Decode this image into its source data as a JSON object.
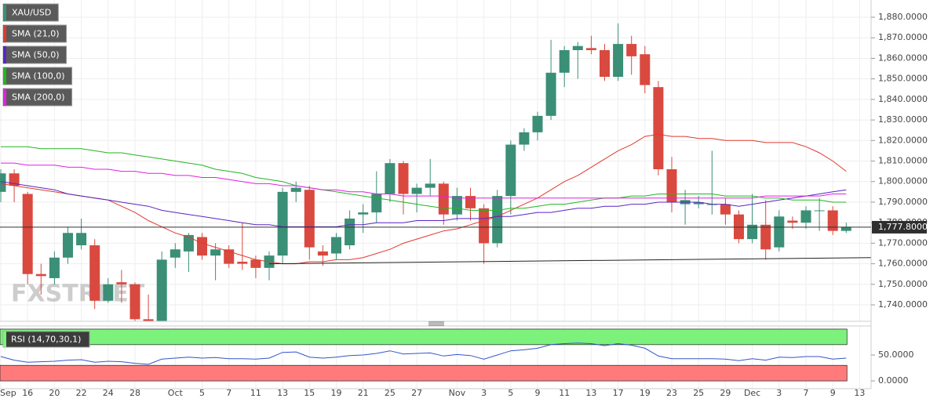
{
  "chart_data": [
    {
      "type": "candlestick",
      "watermark": "FXSTREET",
      "categories": [
        "Sep",
        null,
        "16",
        null,
        "20",
        null,
        "22",
        null,
        "24",
        null,
        "28",
        null,
        null,
        "Oct",
        null,
        "5",
        null,
        "7",
        null,
        "11",
        null,
        "13",
        null,
        "15",
        null,
        "19",
        null,
        "21",
        null,
        "25",
        null,
        "27",
        null,
        null,
        "Nov",
        null,
        "3",
        null,
        "5",
        null,
        "9",
        null,
        "11",
        null,
        "13",
        null,
        "17",
        null,
        "19",
        null,
        "23",
        null,
        "25",
        null,
        "29",
        null,
        "Dec",
        null,
        "3",
        null,
        "7",
        null,
        "9",
        null,
        "13"
      ],
      "series": [
        {
          "name": "XAU/USD",
          "color": "#3a8f76",
          "down_color": "#d9493f",
          "open": [
            1795,
            1804,
            1794,
            1755,
            1753,
            1763,
            1769,
            1769,
            1742,
            1751,
            1750,
            1733,
            1731,
            1763,
            1766,
            1773,
            1764,
            1767,
            1761,
            1762,
            1758,
            1764,
            1795,
            1796,
            1766,
            1765,
            1769,
            1784,
            1785,
            1794,
            1809,
            1794,
            1797,
            1799,
            1784,
            1793,
            1787,
            1770,
            1793,
            1818,
            1824,
            1832,
            1853,
            1864,
            1865,
            1864,
            1851,
            1867,
            1862,
            1846,
            1806,
            1789,
            1789,
            1789,
            1789,
            1784,
            1772,
            1779,
            1768,
            1781,
            1780,
            1786,
            1786,
            1776,
            null
          ],
          "high": [
            1806,
            1806,
            1795,
            1760,
            1766,
            1778,
            1782,
            1772,
            1753,
            1757,
            1751,
            1745,
            1766,
            1770,
            1775,
            1775,
            1770,
            1769,
            1780,
            1764,
            1766,
            1797,
            1800,
            1798,
            1769,
            1775,
            1786,
            1789,
            1805,
            1811,
            1810,
            1799,
            1811,
            1800,
            1797,
            1797,
            1789,
            1796,
            1820,
            1826,
            1834,
            1869,
            1866,
            1868,
            1871,
            1867,
            1877,
            1871,
            1866,
            1849,
            1812,
            1796,
            1793,
            1815,
            1792,
            1786,
            1794,
            1791,
            1786,
            1783,
            1788,
            1792,
            1788,
            1780,
            null
          ],
          "low": [
            1790,
            1790,
            1750,
            1745,
            1750,
            1760,
            1767,
            1738,
            1741,
            1741,
            1730,
            1725,
            1728,
            1758,
            1756,
            1762,
            1752,
            1758,
            1757,
            1753,
            1752,
            1760,
            1790,
            1762,
            1759,
            1762,
            1767,
            1775,
            1780,
            1790,
            1784,
            1785,
            1793,
            1779,
            1781,
            1781,
            1760,
            1768,
            1784,
            1815,
            1820,
            1830,
            1846,
            1850,
            1862,
            1849,
            1849,
            1852,
            1843,
            1803,
            1785,
            1779,
            1787,
            1784,
            1779,
            1770,
            1770,
            1762,
            1766,
            1777,
            1777,
            1776,
            1774,
            1775,
            null
          ],
          "close": [
            1804,
            1798,
            1755,
            1754,
            1763,
            1775,
            1775,
            1742,
            1750,
            1750,
            1733,
            1729,
            1762,
            1767,
            1774,
            1764,
            1767,
            1760,
            1760,
            1758,
            1764,
            1795,
            1797,
            1768,
            1764,
            1773,
            1782,
            1785,
            1794,
            1809,
            1794,
            1797,
            1799,
            1784,
            1793,
            1787,
            1770,
            1793,
            1818,
            1824,
            1832,
            1853,
            1864,
            1866,
            1864,
            1851,
            1867,
            1861,
            1847,
            1806,
            1790,
            1791,
            1790,
            1789,
            1784,
            1772,
            1779,
            1767,
            1783,
            1780,
            1786,
            1786,
            1776,
            1778,
            null
          ]
        }
      ],
      "overlays": [
        {
          "name": "SMA (21,0)",
          "color": "#e03a2f",
          "values": [
            1799,
            1798,
            1797,
            1796,
            1795,
            1794,
            1793,
            1792,
            1791,
            1788,
            1785,
            1781,
            1778,
            1775,
            1773,
            1770,
            1768,
            1766,
            1764,
            1762,
            1761,
            1760,
            1760,
            1761,
            1761,
            1762,
            1762,
            1763,
            1765,
            1767,
            1770,
            1772,
            1774,
            1776,
            1777,
            1779,
            1781,
            1783,
            1786,
            1789,
            1792,
            1796,
            1800,
            1803,
            1807,
            1811,
            1815,
            1818,
            1822,
            1823,
            1822,
            1822,
            1821,
            1821,
            1820,
            1820,
            1820,
            1819,
            1819,
            1819,
            1817,
            1814,
            1810,
            1805,
            null
          ]
        },
        {
          "name": "SMA (50,0)",
          "color": "#5b24c4",
          "values": [
            1800,
            1799,
            1798,
            1797,
            1796,
            1794,
            1793,
            1792,
            1791,
            1790,
            1789,
            1788,
            1786,
            1785,
            1784,
            1783,
            1782,
            1781,
            1780,
            1779,
            1779,
            1778,
            1778,
            1778,
            1778,
            1778,
            1779,
            1779,
            1780,
            1780,
            1780,
            1781,
            1781,
            1781,
            1782,
            1782,
            1782,
            1783,
            1783,
            1784,
            1785,
            1785,
            1786,
            1787,
            1787,
            1788,
            1788,
            1789,
            1789,
            1790,
            1790,
            1790,
            1790,
            1789,
            1789,
            1788,
            1789,
            1790,
            1791,
            1792,
            1793,
            1794,
            1795,
            1796,
            null
          ]
        },
        {
          "name": "SMA (100,0)",
          "color": "#22b522",
          "values": [
            1817,
            1817,
            1817,
            1816,
            1816,
            1816,
            1816,
            1815,
            1814,
            1814,
            1813,
            1812,
            1811,
            1810,
            1809,
            1808,
            1806,
            1805,
            1804,
            1802,
            1801,
            1800,
            1798,
            1797,
            1796,
            1795,
            1794,
            1793,
            1792,
            1791,
            1790,
            1789,
            1788,
            1787,
            1787,
            1786,
            1786,
            1786,
            1787,
            1787,
            1788,
            1789,
            1789,
            1790,
            1791,
            1792,
            1792,
            1793,
            1793,
            1794,
            1794,
            1794,
            1794,
            1794,
            1793,
            1793,
            1793,
            1792,
            1792,
            1791,
            1791,
            1791,
            1790,
            1790,
            null
          ]
        },
        {
          "name": "SMA (200,0)",
          "color": "#e020e0",
          "values": [
            1809,
            1809,
            1808,
            1808,
            1808,
            1807,
            1807,
            1806,
            1806,
            1805,
            1805,
            1804,
            1804,
            1803,
            1803,
            1802,
            1802,
            1801,
            1800,
            1799,
            1799,
            1798,
            1798,
            1797,
            1796,
            1796,
            1795,
            1795,
            1794,
            1794,
            1793,
            1793,
            1793,
            1793,
            1792,
            1792,
            1792,
            1792,
            1792,
            1792,
            1792,
            1792,
            1792,
            1792,
            1792,
            1792,
            1792,
            1792,
            1792,
            1792,
            1792,
            1792,
            1792,
            1792,
            1792,
            1792,
            1792,
            1793,
            1793,
            1793,
            1793,
            1793,
            1794,
            1794,
            null
          ]
        }
      ],
      "trendline": {
        "x": [
          20,
          65
        ],
        "values": [
          1760,
          1763
        ],
        "color": "#222222"
      },
      "last_price": {
        "value": 1777.8,
        "label": "1,777.8000"
      },
      "ylim": [
        1732,
        1888.4
      ],
      "yticks": [
        {
          "value": 1880,
          "label": "1,880.0000"
        },
        {
          "value": 1870,
          "label": "1,870.0000"
        },
        {
          "value": 1860,
          "label": "1,860.0000"
        },
        {
          "value": 1850,
          "label": "1,850.0000"
        },
        {
          "value": 1840,
          "label": "1,840.0000"
        },
        {
          "value": 1830,
          "label": "1,830.0000"
        },
        {
          "value": 1820,
          "label": "1,820.0000"
        },
        {
          "value": 1810,
          "label": "1,810.0000"
        },
        {
          "value": 1800,
          "label": "1,800.0000"
        },
        {
          "value": 1790,
          "label": "1,790.0000"
        },
        {
          "value": 1780,
          "label": "1,780.0000"
        },
        {
          "value": 1770,
          "label": "1,770.0000"
        },
        {
          "value": 1760,
          "label": "1,760.0000"
        },
        {
          "value": 1750,
          "label": "1,750.0000"
        },
        {
          "value": 1740,
          "label": "1,740.0000"
        }
      ],
      "grid": true
    },
    {
      "type": "line",
      "series": [
        {
          "name": "RSI (14,70,30,1)",
          "color": "#3355cc",
          "values": [
            47,
            40,
            36,
            37,
            38,
            40,
            41,
            36,
            38,
            37,
            34,
            32,
            42,
            44,
            46,
            44,
            45,
            43,
            43,
            42,
            44,
            55,
            56,
            46,
            44,
            46,
            49,
            50,
            53,
            58,
            52,
            53,
            54,
            48,
            51,
            49,
            42,
            50,
            58,
            60,
            63,
            70,
            72,
            73,
            72,
            68,
            72,
            69,
            63,
            48,
            43,
            43,
            43,
            43,
            42,
            39,
            43,
            40,
            46,
            45,
            47,
            47,
            42,
            44,
            null
          ]
        }
      ],
      "bands": [
        {
          "from": 70,
          "to": 100,
          "color": "#7cf27c"
        },
        {
          "from": 0,
          "to": 30,
          "color": "#ff7b7b"
        }
      ],
      "ylim": [
        -15,
        106
      ],
      "yticks": [
        {
          "value": 50,
          "label": "50.0000"
        },
        {
          "value": 0,
          "label": "0.0000"
        }
      ]
    }
  ]
}
